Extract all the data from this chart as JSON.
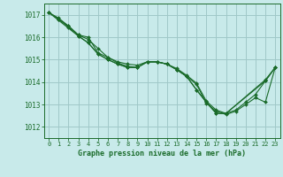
{
  "background_color": "#c8eaea",
  "grid_color": "#a0c8c8",
  "line_color": "#1a6b2a",
  "marker_color": "#1a6b2a",
  "title": "Graphe pression niveau de la mer (hPa)",
  "xlim": [
    -0.5,
    23.5
  ],
  "ylim": [
    1011.5,
    1017.5
  ],
  "yticks": [
    1012,
    1013,
    1014,
    1015,
    1016,
    1017
  ],
  "xticks": [
    0,
    1,
    2,
    3,
    4,
    5,
    6,
    7,
    8,
    9,
    10,
    11,
    12,
    13,
    14,
    15,
    16,
    17,
    18,
    19,
    20,
    21,
    22,
    23
  ],
  "series": [
    {
      "x": [
        0,
        1,
        2,
        3,
        4,
        5,
        6,
        7,
        8,
        9,
        10,
        11,
        12,
        13,
        14,
        15,
        16,
        17,
        18,
        19,
        20,
        21,
        22,
        23
      ],
      "y": [
        1017.1,
        1016.8,
        1016.5,
        1016.1,
        1015.9,
        1015.5,
        1015.1,
        1014.85,
        1014.7,
        1014.65,
        1014.9,
        1014.9,
        1014.8,
        1014.55,
        1014.25,
        1013.9,
        1013.05,
        1012.7,
        1012.55,
        1012.7,
        1013.0,
        1013.3,
        1013.1,
        1014.65
      ]
    },
    {
      "x": [
        0,
        1,
        2,
        3,
        4,
        5,
        6,
        7,
        8,
        9,
        10,
        11,
        12,
        13,
        14,
        15,
        16,
        17,
        18,
        19,
        20,
        21,
        22,
        23
      ],
      "y": [
        1017.1,
        1016.8,
        1016.45,
        1016.05,
        1015.75,
        1015.25,
        1015.0,
        1014.8,
        1014.65,
        1014.65,
        1014.9,
        1014.9,
        1014.8,
        1014.55,
        1014.25,
        1013.65,
        1013.1,
        1012.6,
        1012.6,
        1012.75,
        1013.1,
        1013.45,
        1014.05,
        1014.65
      ]
    },
    {
      "x": [
        0,
        3,
        4,
        5,
        6,
        7,
        8,
        9,
        10,
        11,
        12,
        13,
        14,
        15,
        16,
        17,
        18,
        22,
        23
      ],
      "y": [
        1017.1,
        1016.05,
        1015.75,
        1015.25,
        1015.0,
        1014.8,
        1014.65,
        1014.65,
        1014.9,
        1014.9,
        1014.8,
        1014.55,
        1014.25,
        1013.65,
        1013.1,
        1012.6,
        1012.6,
        1014.05,
        1014.65
      ]
    },
    {
      "x": [
        0,
        1,
        2,
        3,
        4,
        5,
        6,
        7,
        8,
        9,
        10,
        11,
        12,
        13,
        14,
        15,
        16,
        17,
        18,
        22,
        23
      ],
      "y": [
        1017.1,
        1016.85,
        1016.5,
        1016.1,
        1016.0,
        1015.3,
        1015.1,
        1014.9,
        1014.8,
        1014.75,
        1014.9,
        1014.9,
        1014.8,
        1014.6,
        1014.3,
        1013.95,
        1013.15,
        1012.75,
        1012.6,
        1014.1,
        1014.65
      ]
    }
  ]
}
